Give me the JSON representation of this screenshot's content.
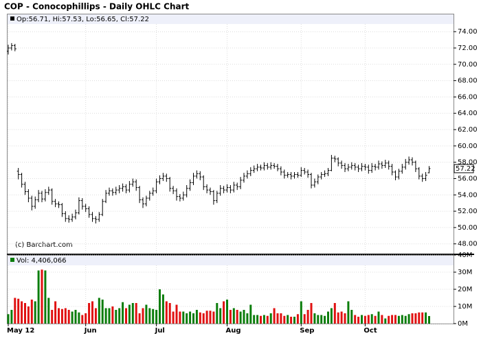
{
  "chart_data": {
    "type": "ohlc",
    "title": "COP - Conocophillips - Daily OHLC Chart",
    "watermark": "(c) Barchart.com",
    "categories": [
      "May 12",
      null,
      null,
      null,
      null,
      null,
      null,
      null,
      null,
      null,
      null,
      null,
      null,
      null,
      null,
      null,
      null,
      null,
      null,
      null,
      null,
      null,
      null,
      "Jun",
      null,
      null,
      null,
      null,
      null,
      null,
      null,
      null,
      null,
      null,
      null,
      null,
      null,
      null,
      null,
      null,
      null,
      null,
      null,
      null,
      "Jul",
      null,
      null,
      null,
      null,
      null,
      null,
      null,
      null,
      null,
      null,
      null,
      null,
      null,
      null,
      null,
      null,
      null,
      null,
      null,
      null,
      "Aug",
      null,
      null,
      null,
      null,
      null,
      null,
      null,
      null,
      null,
      null,
      null,
      null,
      null,
      null,
      null,
      null,
      null,
      null,
      null,
      null,
      null,
      "Sep",
      null,
      null,
      null,
      null,
      null,
      null,
      null,
      null,
      null,
      null,
      null,
      null,
      null,
      null,
      null,
      null,
      null,
      null,
      "Oct",
      null,
      null,
      null,
      null,
      null,
      null,
      null,
      null,
      null,
      null,
      null,
      null,
      null,
      null,
      null,
      null,
      null,
      null,
      null
    ],
    "open": [
      71.6,
      72.0,
      72.3,
      56.9,
      56.5,
      55.3,
      54.4,
      53.6,
      52.6,
      53.4,
      54.2,
      53.5,
      54.3,
      54.6,
      53.2,
      52.9,
      52.8,
      51.7,
      51.1,
      51.0,
      51.3,
      51.8,
      53.3,
      52.6,
      52.3,
      51.6,
      51.1,
      51.0,
      51.6,
      53.2,
      54.2,
      54.5,
      54.3,
      54.6,
      54.8,
      55.0,
      54.6,
      55.3,
      55.6,
      54.9,
      53.4,
      52.9,
      53.6,
      54.2,
      54.5,
      55.6,
      56.0,
      56.3,
      56.0,
      54.8,
      54.5,
      53.8,
      53.6,
      54.0,
      54.8,
      55.5,
      56.3,
      56.6,
      56.2,
      55.0,
      54.6,
      54.4,
      53.3,
      54.2,
      54.8,
      54.6,
      54.9,
      54.6,
      55.2,
      55.0,
      55.8,
      56.3,
      56.6,
      57.0,
      57.2,
      57.4,
      57.3,
      57.6,
      57.4,
      57.6,
      57.5,
      57.2,
      56.8,
      56.4,
      56.5,
      56.3,
      56.5,
      56.4,
      57.0,
      56.8,
      56.5,
      55.2,
      55.6,
      56.2,
      56.5,
      56.6,
      57.0,
      58.5,
      58.4,
      57.9,
      57.6,
      57.2,
      57.4,
      57.6,
      57.4,
      57.2,
      57.5,
      57.4,
      57.0,
      57.5,
      57.4,
      57.8,
      57.6,
      57.9,
      57.5,
      56.8,
      56.2,
      56.9,
      57.4,
      58.0,
      58.3,
      58.0,
      57.2,
      56.3,
      56.0,
      56.71
    ],
    "high": [
      72.4,
      72.6,
      72.5,
      57.3,
      56.7,
      55.6,
      54.7,
      53.9,
      53.8,
      54.6,
      54.5,
      54.7,
      55.0,
      54.8,
      53.5,
      53.2,
      53.0,
      52.0,
      51.5,
      51.7,
      52.2,
      53.7,
      53.6,
      52.9,
      52.6,
      51.9,
      51.4,
      51.9,
      53.5,
      54.6,
      54.9,
      54.8,
      55.0,
      55.2,
      55.4,
      55.3,
      55.7,
      56.0,
      55.9,
      55.1,
      53.7,
      53.9,
      54.5,
      54.9,
      56.0,
      56.4,
      56.7,
      56.6,
      56.2,
      55.1,
      54.8,
      54.1,
      54.4,
      55.2,
      55.9,
      56.7,
      57.0,
      56.9,
      56.4,
      55.3,
      54.9,
      54.6,
      54.5,
      55.2,
      55.1,
      55.3,
      55.2,
      55.6,
      55.5,
      56.2,
      56.7,
      57.0,
      57.4,
      57.6,
      57.8,
      57.7,
      58.0,
      57.9,
      58.0,
      57.9,
      57.8,
      57.5,
      57.1,
      56.8,
      56.8,
      56.8,
      56.8,
      57.4,
      57.3,
      57.1,
      56.7,
      56.0,
      56.5,
      56.8,
      57.0,
      57.3,
      58.9,
      58.8,
      58.6,
      58.2,
      57.9,
      57.8,
      58.0,
      57.9,
      57.7,
      57.9,
      57.8,
      57.7,
      57.9,
      57.8,
      58.2,
      58.1,
      58.3,
      58.2,
      57.8,
      57.0,
      57.2,
      57.8,
      58.4,
      58.7,
      58.6,
      58.2,
      57.4,
      56.6,
      56.8,
      57.53
    ],
    "low": [
      71.2,
      71.7,
      71.6,
      55.9,
      54.9,
      54.0,
      53.1,
      52.1,
      52.3,
      53.1,
      53.1,
      53.2,
      54.0,
      52.8,
      52.5,
      52.4,
      51.3,
      50.7,
      50.6,
      50.7,
      51.0,
      51.6,
      52.2,
      51.9,
      51.2,
      50.7,
      50.5,
      50.7,
      51.4,
      53.0,
      53.9,
      53.9,
      54.0,
      54.2,
      54.4,
      54.2,
      54.3,
      55.0,
      54.5,
      53.0,
      52.4,
      52.6,
      53.3,
      53.9,
      54.2,
      55.3,
      55.7,
      55.6,
      54.4,
      54.1,
      53.3,
      53.2,
      53.3,
      53.7,
      54.5,
      55.2,
      56.0,
      55.8,
      54.6,
      54.2,
      54.0,
      52.8,
      53.0,
      53.9,
      54.2,
      54.3,
      54.2,
      54.3,
      54.6,
      54.7,
      55.5,
      56.0,
      56.3,
      56.7,
      56.9,
      57.0,
      57.0,
      57.1,
      57.1,
      57.2,
      56.9,
      56.4,
      56.0,
      56.1,
      55.9,
      56.0,
      56.1,
      56.2,
      56.5,
      56.1,
      54.8,
      54.9,
      55.3,
      55.9,
      56.2,
      56.3,
      56.9,
      58.0,
      57.5,
      57.2,
      56.8,
      56.9,
      57.1,
      57.0,
      56.8,
      56.9,
      57.0,
      56.6,
      56.7,
      57.0,
      57.1,
      57.2,
      57.3,
      57.1,
      56.4,
      55.8,
      55.9,
      56.6,
      57.1,
      57.7,
      57.6,
      56.8,
      55.9,
      55.6,
      55.7,
      56.65
    ],
    "close": [
      72.0,
      72.3,
      71.9,
      56.5,
      55.3,
      54.4,
      53.6,
      52.6,
      53.4,
      54.2,
      53.5,
      54.3,
      54.6,
      53.2,
      52.9,
      52.8,
      51.7,
      51.1,
      51.0,
      51.3,
      51.8,
      53.3,
      52.6,
      52.3,
      51.6,
      51.1,
      51.0,
      51.6,
      53.2,
      54.2,
      54.5,
      54.3,
      54.6,
      54.8,
      55.0,
      54.6,
      55.3,
      55.6,
      54.9,
      53.4,
      52.9,
      53.6,
      54.2,
      54.5,
      55.6,
      56.0,
      56.3,
      56.0,
      54.8,
      54.5,
      53.8,
      53.6,
      54.0,
      54.8,
      55.5,
      56.3,
      56.6,
      56.2,
      55.0,
      54.6,
      54.4,
      53.3,
      54.2,
      54.8,
      54.6,
      54.9,
      54.6,
      55.2,
      55.0,
      55.8,
      56.3,
      56.6,
      57.0,
      57.2,
      57.4,
      57.3,
      57.6,
      57.4,
      57.6,
      57.5,
      57.2,
      56.8,
      56.4,
      56.5,
      56.3,
      56.5,
      56.4,
      57.0,
      56.8,
      56.5,
      55.2,
      55.6,
      56.2,
      56.5,
      56.6,
      57.0,
      58.5,
      58.4,
      57.9,
      57.6,
      57.2,
      57.4,
      57.6,
      57.4,
      57.2,
      57.5,
      57.4,
      57.0,
      57.5,
      57.4,
      57.8,
      57.6,
      57.9,
      57.5,
      56.8,
      56.2,
      56.9,
      57.4,
      58.0,
      58.3,
      58.0,
      57.2,
      56.3,
      56.0,
      56.4,
      57.22
    ],
    "color": "#000000",
    "legend_labels": [
      "Op:",
      ", Hi:",
      ", Lo:",
      ", Cl:"
    ],
    "ylim": [
      46.8,
      76.2
    ],
    "yticks": [
      {
        "value": 48,
        "label": "48.00"
      },
      {
        "value": 50,
        "label": "50.00"
      },
      {
        "value": 52,
        "label": "52.00"
      },
      {
        "value": 54,
        "label": "54.00"
      },
      {
        "value": 56,
        "label": "56.00"
      },
      {
        "value": 58,
        "label": "58.00"
      },
      {
        "value": 60,
        "label": "60.00"
      },
      {
        "value": 62,
        "label": "62.00"
      },
      {
        "value": 64,
        "label": "64.00"
      },
      {
        "value": 66,
        "label": "66.00"
      },
      {
        "value": 68,
        "label": "68.00"
      },
      {
        "value": 70,
        "label": "70.00"
      },
      {
        "value": 72,
        "label": "72.00"
      },
      {
        "value": 74,
        "label": "74.00"
      }
    ],
    "grid": true,
    "volume": {
      "label": "Vol:",
      "last_label": "4,406,066",
      "up_color": "#0b7d0b",
      "down_color": "#e01010",
      "values": [
        5.5,
        8,
        15,
        14.5,
        13,
        12,
        10,
        14,
        13,
        31,
        31.5,
        31,
        15,
        8,
        13,
        9,
        8.5,
        9,
        8,
        7,
        8,
        6.5,
        5,
        6,
        12,
        13,
        9,
        15,
        14,
        9,
        9,
        10,
        8,
        9,
        12.5,
        9,
        11,
        12,
        12,
        6,
        9,
        11,
        9,
        8.5,
        8,
        20,
        17,
        13,
        12,
        7,
        11,
        7,
        7,
        6,
        7,
        6,
        8,
        6.5,
        6,
        7.5,
        7.5,
        7,
        12,
        9,
        13,
        14,
        8,
        9,
        8,
        7,
        8,
        6,
        11,
        5,
        5,
        4.5,
        5,
        4.5,
        6,
        9,
        6,
        6,
        4.5,
        5,
        4,
        4,
        5.5,
        13,
        5.5,
        8,
        12,
        6,
        5,
        5,
        4.5,
        7,
        9,
        12,
        6.5,
        7,
        6,
        13,
        8,
        5,
        4,
        5,
        4.5,
        5,
        5.5,
        4.5,
        7,
        5,
        3,
        4.5,
        5,
        5,
        4.5,
        5,
        4.5,
        5.5,
        6,
        6,
        6.5,
        6.5,
        6.5,
        4.406066
      ],
      "ylim": [
        0,
        40
      ],
      "yticks": [
        {
          "value": 0,
          "label": "0M"
        },
        {
          "value": 10,
          "label": "10M"
        },
        {
          "value": 20,
          "label": "20M"
        },
        {
          "value": 30,
          "label": "30M"
        },
        {
          "value": 40,
          "label": "40M"
        }
      ]
    }
  }
}
